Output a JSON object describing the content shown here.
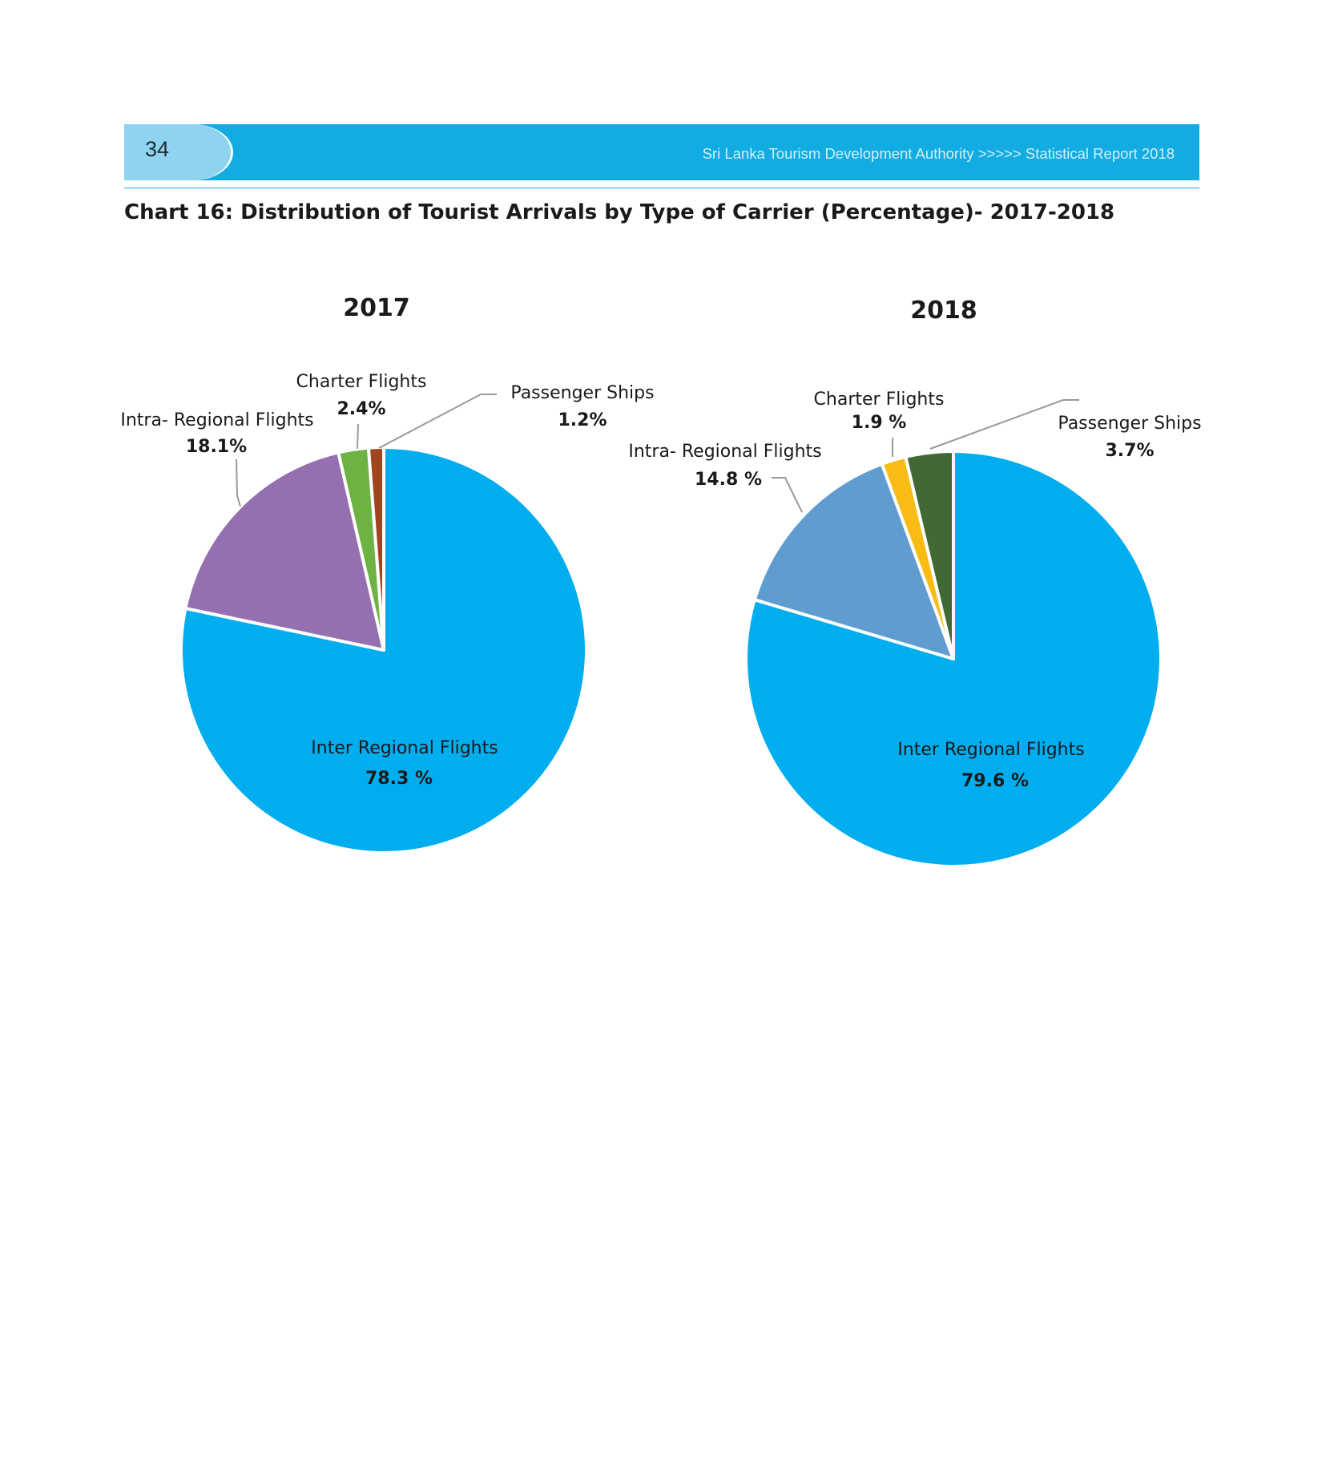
{
  "header": {
    "page_number": "34",
    "title": "Sri Lanka Tourism Development Authority >>>>> Statistical Report 2018"
  },
  "chart_title": "Chart 16: Distribution of Tourist Arrivals by Type of Carrier (Percentage)- 2017-2018",
  "chart_data": [
    {
      "type": "pie",
      "title": "2017",
      "slices": [
        {
          "label": "Inter Regional Flights",
          "value": 78.3,
          "display": "78.3 %",
          "color": "#00adee"
        },
        {
          "label": "Intra- Regional Flights",
          "value": 18.1,
          "display": "18.1%",
          "color": "#9570b0"
        },
        {
          "label": "Charter Flights",
          "value": 2.4,
          "display": "2.4%",
          "color": "#6fb244"
        },
        {
          "label": "Passenger Ships",
          "value": 1.2,
          "display": "1.2%",
          "color": "#a0461f"
        }
      ]
    },
    {
      "type": "pie",
      "title": "2018",
      "slices": [
        {
          "label": "Inter Regional Flights",
          "value": 79.6,
          "display": "79.6 %",
          "color": "#00adee"
        },
        {
          "label": "Intra- Regional Flights",
          "value": 14.8,
          "display": "14.8 %",
          "color": "#5f9ccf"
        },
        {
          "label": "Charter Flights",
          "value": 1.9,
          "display": "1.9 %",
          "color": "#f9bc15"
        },
        {
          "label": "Passenger Ships",
          "value": 3.7,
          "display": "3.7%",
          "color": "#426834"
        }
      ]
    }
  ]
}
